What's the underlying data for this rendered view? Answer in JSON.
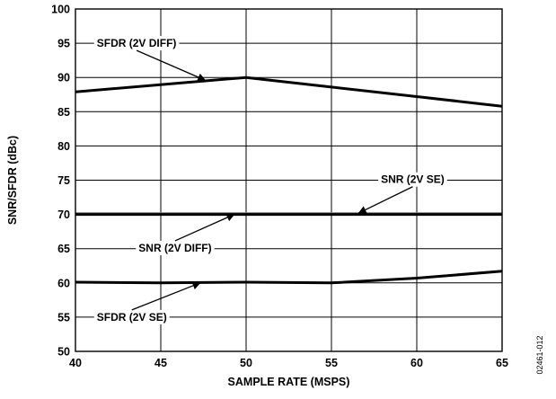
{
  "chart_data": {
    "type": "line",
    "title": "",
    "xlabel": "SAMPLE RATE (MSPS)",
    "ylabel": "SNR/SFDR (dBc)",
    "xlim": [
      40,
      65
    ],
    "ylim": [
      50,
      100
    ],
    "x_ticks": [
      "40",
      "45",
      "50",
      "55",
      "60",
      "65"
    ],
    "y_ticks": [
      "50",
      "55",
      "60",
      "65",
      "70",
      "75",
      "80",
      "85",
      "90",
      "95",
      "100"
    ],
    "grid": true,
    "series": [
      {
        "name": "SFDR (2V DIFF)",
        "color": "#000000",
        "x": [
          40,
          50,
          55,
          60,
          65
        ],
        "y": [
          87.9,
          90.0,
          88.6,
          87.2,
          85.8
        ]
      },
      {
        "name": "SNR (2V SE)",
        "color": "#777777",
        "x": [
          40,
          45,
          50,
          55,
          60,
          65
        ],
        "y": [
          70.1,
          70.1,
          70.1,
          70.1,
          70.1,
          70.1
        ]
      },
      {
        "name": "SNR (2V DIFF)",
        "color": "#000000",
        "x": [
          40,
          45,
          50,
          55,
          60,
          65
        ],
        "y": [
          70.0,
          70.0,
          70.0,
          70.0,
          70.0,
          70.0
        ]
      },
      {
        "name": "SFDR (2V SE)",
        "color": "#000000",
        "x": [
          40,
          45,
          50,
          55,
          60,
          65
        ],
        "y": [
          60.1,
          60.0,
          60.1,
          60.0,
          60.7,
          61.7
        ]
      }
    ],
    "annotations": [
      {
        "text": "SFDR (2V DIFF)",
        "tx": 41.25,
        "ty": 95.0,
        "ax": 47.6,
        "ay": 89.6
      },
      {
        "text": "SNR (2V SE)",
        "tx": 57.9,
        "ty": 75.1,
        "ax": 56.6,
        "ay": 70.2
      },
      {
        "text": "SNR (2V DIFF)",
        "tx": 43.7,
        "ty": 65.1,
        "ax": 49.3,
        "ay": 70.0
      },
      {
        "text": "SFDR (2V SE)",
        "tx": 41.25,
        "ty": 55.0,
        "ax": 47.3,
        "ay": 60.0
      }
    ],
    "figure_code": "02461-012"
  }
}
